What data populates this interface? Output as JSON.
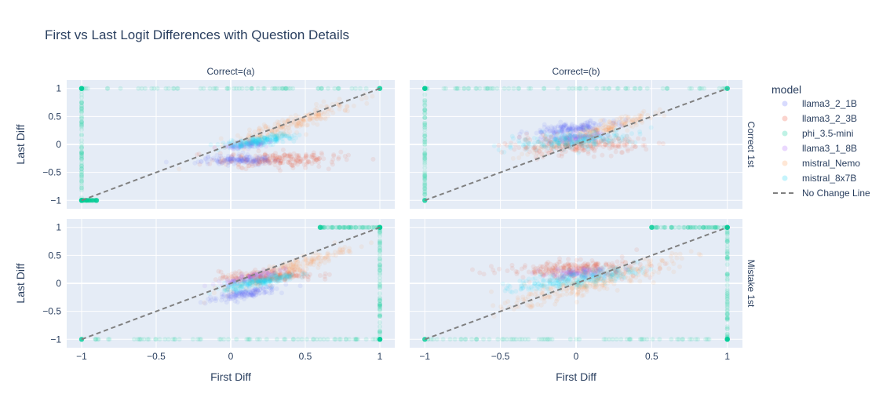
{
  "chart_data": {
    "type": "scatter",
    "title": "First vs Last Logit Differences with Question Details",
    "xlabel": "First Diff",
    "ylabel": "Last Diff",
    "xlim": [
      -1.1,
      1.1
    ],
    "ylim": [
      -1.15,
      1.15
    ],
    "x_ticks": [
      -1,
      -0.5,
      0,
      0.5,
      1
    ],
    "x_tick_labels": [
      "−1",
      "−0.5",
      "0",
      "0.5",
      "1"
    ],
    "y_ticks": [
      1,
      0.5,
      0,
      -0.5,
      -1
    ],
    "y_tick_labels": [
      "1",
      "0.5",
      "0",
      "−0.5",
      "−1"
    ],
    "facet_columns": [
      "Correct=(a)",
      "Correct=(b)"
    ],
    "facet_rows": [
      "Correct 1st",
      "Mistake 1st"
    ],
    "legend": {
      "title": "model",
      "position": "right",
      "entries": [
        {
          "name": "llama3_2_1B",
          "color": "#636efa"
        },
        {
          "name": "llama3_2_3B",
          "color": "#ef553b"
        },
        {
          "name": "phi_3.5-mini",
          "color": "#00cc96"
        },
        {
          "name": "llama3_1_8B",
          "color": "#ab63fa"
        },
        {
          "name": "mistral_Nemo",
          "color": "#ffa15a"
        },
        {
          "name": "mistral_8x7B",
          "color": "#19d3f3"
        }
      ],
      "line_entry": "No Change Line"
    },
    "reference_line": {
      "name": "No Change Line",
      "x": [
        -1,
        1
      ],
      "y": [
        -1,
        1
      ],
      "color": "#808080"
    },
    "panels": [
      {
        "column": "Correct=(a)",
        "row": "Correct 1st",
        "clusters": [
          {
            "model": "mistral_Nemo",
            "cx": 0.4,
            "cy": 0.35,
            "spread": 0.22,
            "slope": 0.9,
            "n": 220
          },
          {
            "model": "llama3_2_3B",
            "cx": 0.3,
            "cy": -0.27,
            "spread": 0.2,
            "slope": 0.05,
            "n": 220
          },
          {
            "model": "llama3_2_1B",
            "cx": 0.05,
            "cy": -0.28,
            "spread": 0.12,
            "slope": 0.0,
            "n": 140
          },
          {
            "model": "llama3_1_8B",
            "cx": 0.12,
            "cy": 0.0,
            "spread": 0.08,
            "slope": 0.3,
            "n": 90
          },
          {
            "model": "mistral_8x7B",
            "cx": 0.18,
            "cy": 0.05,
            "spread": 0.12,
            "slope": 0.4,
            "n": 220
          }
        ],
        "edges": [
          {
            "x": -1,
            "ymin": -1,
            "ymax": 1
          },
          {
            "y": 1,
            "xmin": -1,
            "xmax": 1
          },
          {
            "y": -1,
            "xmin": -1,
            "xmax": -0.9
          }
        ]
      },
      {
        "column": "Correct=(b)",
        "row": "Correct 1st",
        "clusters": [
          {
            "model": "mistral_Nemo",
            "cx": 0.15,
            "cy": 0.25,
            "spread": 0.18,
            "slope": 0.8,
            "n": 200
          },
          {
            "model": "llama3_2_1B",
            "cx": -0.05,
            "cy": 0.28,
            "spread": 0.13,
            "slope": 0.3,
            "n": 160
          },
          {
            "model": "llama3_2_3B",
            "cx": 0.0,
            "cy": -0.02,
            "spread": 0.22,
            "slope": 0.05,
            "n": 240
          },
          {
            "model": "llama3_1_8B",
            "cx": 0.0,
            "cy": 0.12,
            "spread": 0.1,
            "slope": 0.2,
            "n": 90
          },
          {
            "model": "mistral_8x7B",
            "cx": 0.0,
            "cy": 0.08,
            "spread": 0.2,
            "slope": 0.2,
            "n": 240
          }
        ],
        "edges": [
          {
            "x": -1,
            "ymin": -1,
            "ymax": 1
          },
          {
            "y": 1,
            "xmin": -1,
            "xmax": 1
          }
        ]
      },
      {
        "column": "Correct=(a)",
        "row": "Mistake 1st",
        "clusters": [
          {
            "model": "mistral_Nemo",
            "cx": 0.38,
            "cy": 0.25,
            "spread": 0.2,
            "slope": 0.9,
            "n": 220
          },
          {
            "model": "llama3_2_1B",
            "cx": 0.07,
            "cy": -0.2,
            "spread": 0.12,
            "slope": 0.5,
            "n": 140
          },
          {
            "model": "llama3_2_3B",
            "cx": 0.25,
            "cy": 0.13,
            "spread": 0.16,
            "slope": 0.1,
            "n": 180
          },
          {
            "model": "llama3_1_8B",
            "cx": 0.12,
            "cy": 0.1,
            "spread": 0.1,
            "slope": 0.6,
            "n": 100
          },
          {
            "model": "mistral_8x7B",
            "cx": 0.2,
            "cy": 0.03,
            "spread": 0.12,
            "slope": 0.5,
            "n": 220
          }
        ],
        "edges": [
          {
            "x": 1,
            "ymin": -1,
            "ymax": 1
          },
          {
            "y": -1,
            "xmin": -1,
            "xmax": 1
          },
          {
            "y": 1,
            "xmin": 0.6,
            "xmax": 1
          }
        ]
      },
      {
        "column": "Correct=(b)",
        "row": "Mistake 1st",
        "clusters": [
          {
            "model": "mistral_Nemo",
            "cx": 0.1,
            "cy": 0.0,
            "spread": 0.28,
            "slope": 0.7,
            "n": 260
          },
          {
            "model": "llama3_2_3B",
            "cx": -0.02,
            "cy": 0.25,
            "spread": 0.22,
            "slope": 0.05,
            "n": 260
          },
          {
            "model": "llama3_1_8B",
            "cx": 0.0,
            "cy": 0.18,
            "spread": 0.12,
            "slope": 0.2,
            "n": 100
          },
          {
            "model": "mistral_8x7B",
            "cx": 0.0,
            "cy": 0.08,
            "spread": 0.2,
            "slope": 0.35,
            "n": 260
          }
        ],
        "edges": [
          {
            "x": 1,
            "ymin": -1,
            "ymax": 1
          },
          {
            "y": -1,
            "xmin": -1,
            "xmax": 1
          },
          {
            "y": 1,
            "xmin": 0.5,
            "xmax": 1
          }
        ]
      }
    ]
  }
}
